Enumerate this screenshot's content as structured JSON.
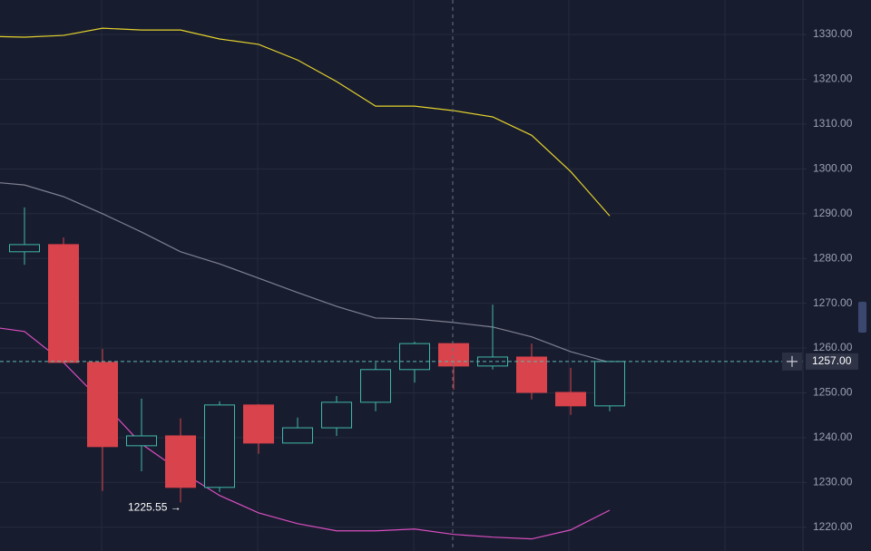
{
  "chart_data": {
    "type": "candlestick",
    "categories": [
      null,
      null,
      null,
      null,
      null,
      null,
      null,
      null,
      null,
      null,
      null,
      null,
      null,
      null,
      null,
      null,
      null
    ],
    "open": [
      null,
      1281.5,
      1283.1,
      1256.8,
      1238.2,
      1240.4,
      1228.9,
      1247.3,
      1238.8,
      1242.2,
      1247.9,
      1255.2,
      1261.0,
      1256.0,
      1258.0,
      1250.1,
      1247.1
    ],
    "high": [
      null,
      1291.4,
      1284.7,
      1259.8,
      1248.7,
      1244.3,
      1248.1,
      1247.5,
      1244.5,
      1249.3,
      1256.8,
      1261.4,
      1261.0,
      1269.7,
      1261.0,
      1255.6,
      1257.0
    ],
    "low": [
      null,
      1278.6,
      1256.6,
      1228.1,
      1232.5,
      1225.55,
      1227.9,
      1236.4,
      1238.8,
      1240.4,
      1245.9,
      1252.3,
      1250.7,
      1255.2,
      1248.5,
      1245.1,
      1245.9
    ],
    "close": [
      null,
      1283.1,
      1256.8,
      1238.0,
      1240.4,
      1228.9,
      1247.3,
      1238.8,
      1242.2,
      1247.9,
      1255.2,
      1261.0,
      1256.0,
      1258.0,
      1250.1,
      1247.1,
      1257.0
    ],
    "up_color": "#3fb8a8",
    "down_color": "#d9434b",
    "series": [
      {
        "color": "#e3d22c",
        "values": [
          1329.6,
          1329.4,
          1329.8,
          1331.4,
          1331.0,
          1331.0,
          1329.0,
          1327.8,
          1324.3,
          1319.5,
          1314.0,
          1314.0,
          1313.0,
          1311.6,
          1307.5,
          1299.4,
          1289.5
        ]
      },
      {
        "color": "#7d8190",
        "values": [
          1297.2,
          1296.4,
          1293.8,
          1290.0,
          1285.9,
          1281.5,
          1278.8,
          1275.6,
          1272.4,
          1269.3,
          1266.7,
          1266.5,
          1265.7,
          1264.7,
          1262.5,
          1259.2,
          1256.8
        ]
      },
      {
        "color": "#d94fc0",
        "values": [
          1264.9,
          1263.7,
          1256.8,
          1247.9,
          1238.6,
          1232.5,
          1227.1,
          1223.2,
          1220.8,
          1219.2,
          1219.2,
          1219.6,
          1218.4,
          1217.8,
          1217.4,
          1219.4,
          1223.8
        ]
      }
    ],
    "ylim": [
      1214.7,
      1337.7
    ],
    "yticks": [
      {
        "value": 1220,
        "label": "1220.00"
      },
      {
        "value": 1230,
        "label": "1230.00"
      },
      {
        "value": 1240,
        "label": "1240.00"
      },
      {
        "value": 1250,
        "label": "1250.00"
      },
      {
        "value": 1260,
        "label": "1260.00"
      },
      {
        "value": 1270,
        "label": "1270.00"
      },
      {
        "value": 1280,
        "label": "1280.00"
      },
      {
        "value": 1290,
        "label": "1290.00"
      },
      {
        "value": 1300,
        "label": "1300.00"
      },
      {
        "value": 1310,
        "label": "1310.00"
      },
      {
        "value": 1320,
        "label": "1320.00"
      },
      {
        "value": 1330,
        "label": "1330.00"
      }
    ],
    "grid": true,
    "last_price": {
      "value": 1257,
      "label": "1257.00"
    },
    "low_annotation": {
      "value": 1225.55,
      "label": "1225.55 →"
    }
  }
}
